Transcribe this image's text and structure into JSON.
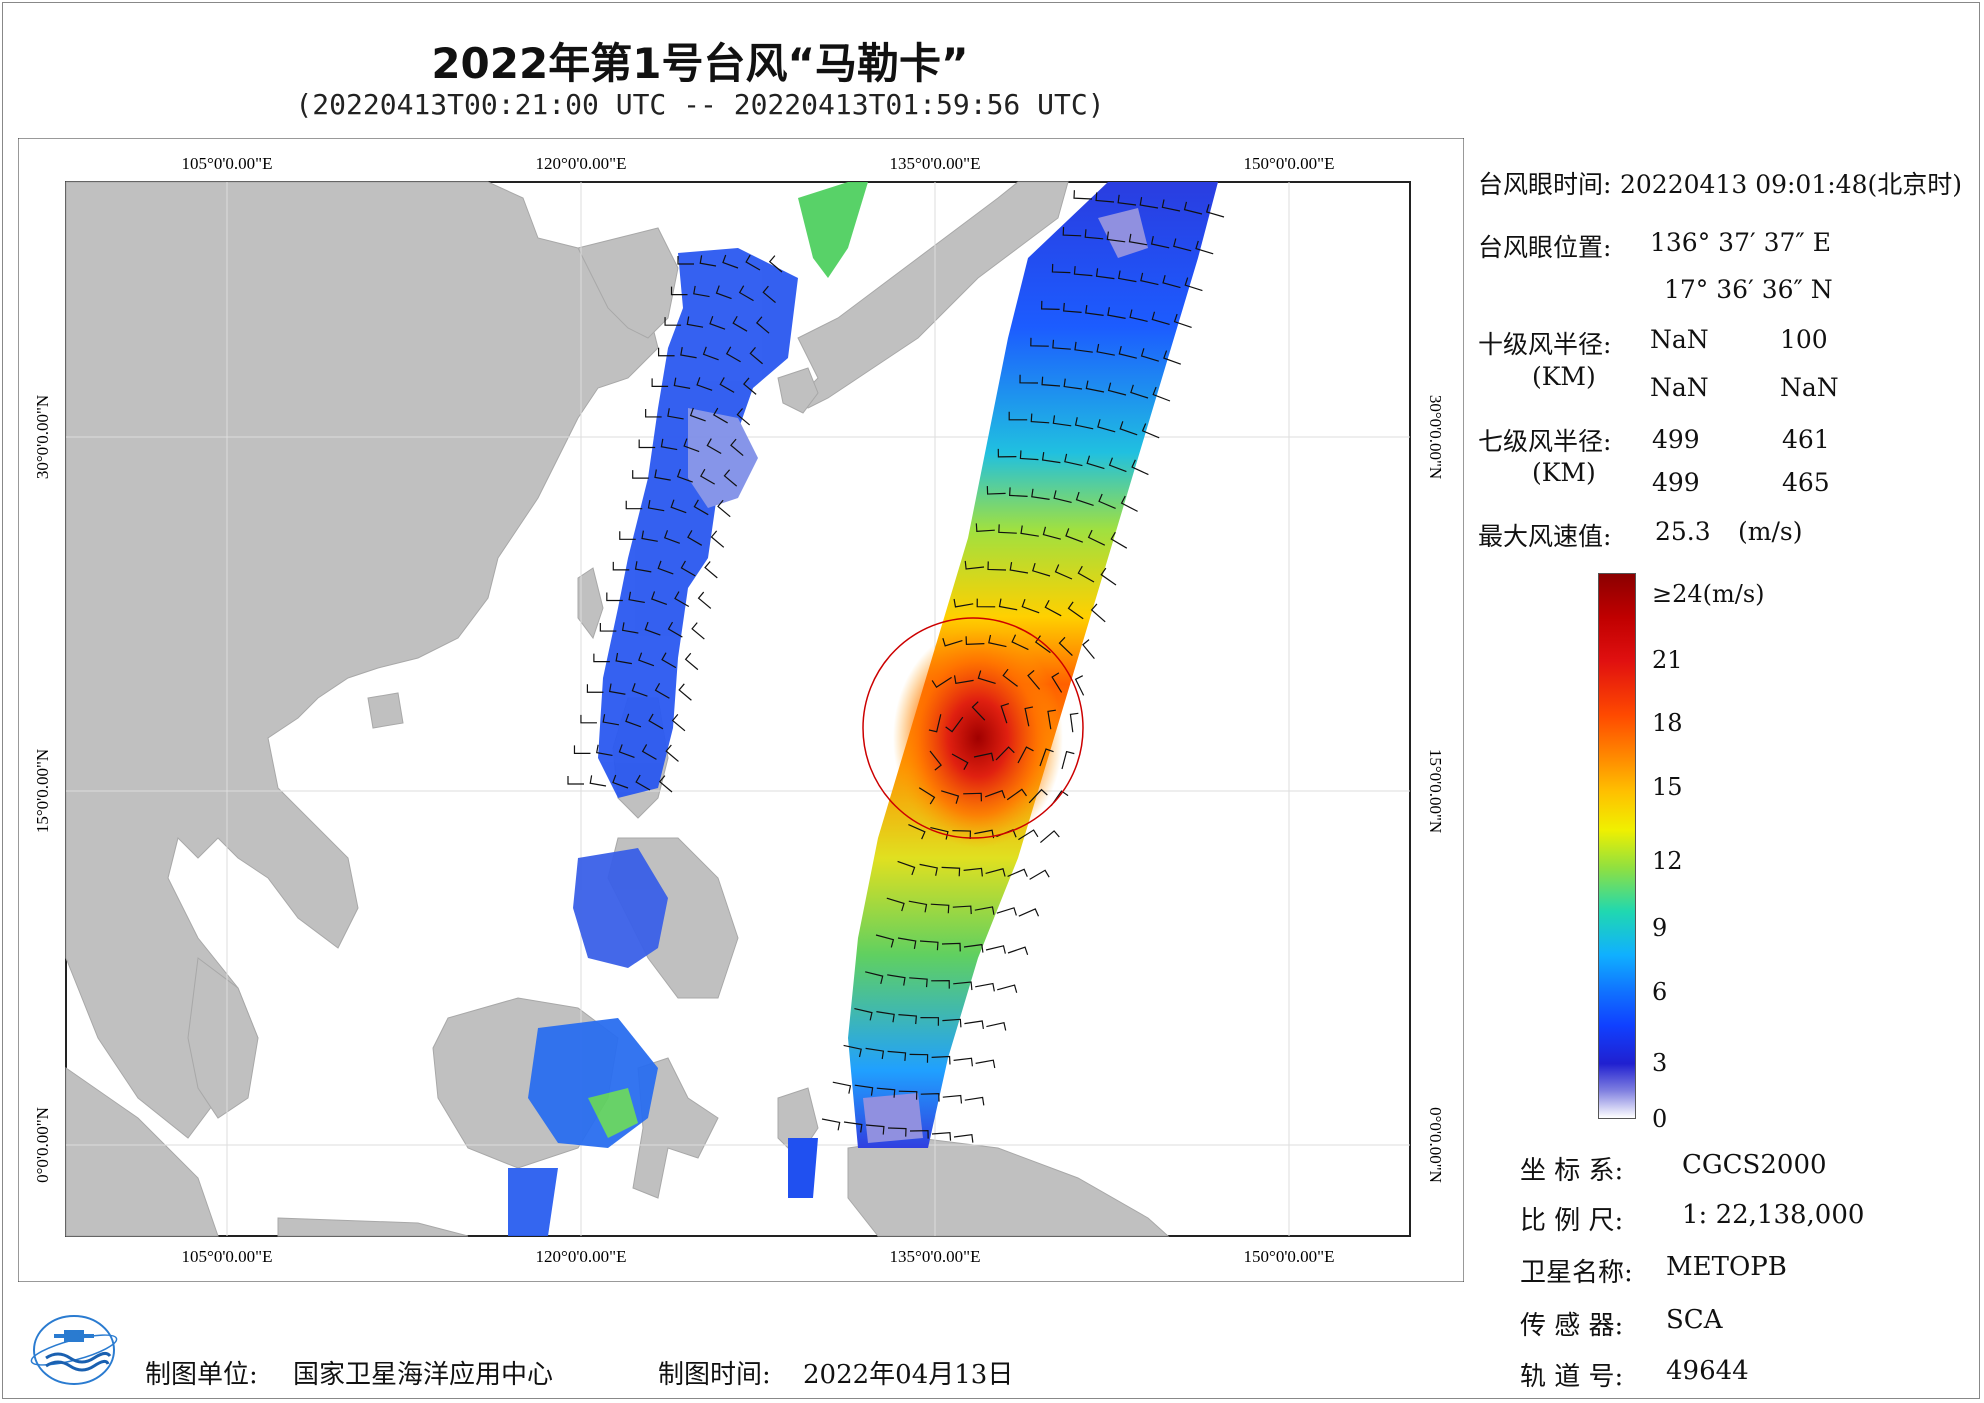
{
  "title": "2022年第1号台风“马勒卡”",
  "subtitle": "(20220413T00:21:00 UTC -- 20220413T01:59:56 UTC)",
  "map": {
    "lon_labels": [
      "105°0'0.00\"E",
      "120°0'0.00\"E",
      "135°0'0.00\"E",
      "150°0'0.00\"E"
    ],
    "lat_labels": [
      "30°0'0.00\"N",
      "15°0'0.00\"N",
      "0°0'0.00\"N"
    ],
    "colors": {
      "land": "#c0c0c0",
      "sea": "#ffffff",
      "circle": "#cc0000"
    }
  },
  "info": {
    "eye_time_label": "台风眼时间:",
    "eye_time_value": "20220413 09:01:48(北京时)",
    "eye_pos_label": "台风眼位置:",
    "eye_lon": "136° 37′ 37″ E",
    "eye_lat": "17° 36′ 36″ N",
    "r10_label": "十级风半径:",
    "r10_unit": "(KM)",
    "r10": [
      [
        "NaN",
        "100"
      ],
      [
        "NaN",
        "NaN"
      ]
    ],
    "r7_label": "七级风半径:",
    "r7_unit": "(KM)",
    "r7": [
      [
        "499",
        "461"
      ],
      [
        "499",
        "465"
      ]
    ],
    "max_wind_label": "最大风速值:",
    "max_wind_value": "25.3",
    "max_wind_unit": "(m/s)"
  },
  "colorbar": {
    "labels": [
      "≥24(m/s)",
      "21",
      "18",
      "15",
      "12",
      "9",
      "6",
      "3",
      "0"
    ],
    "colors": [
      "#8b0000",
      "#e01010",
      "#ff6a00",
      "#ffc000",
      "#f0f000",
      "#80e040",
      "#20d0c0",
      "#10a0ff",
      "#1040ff",
      "#2020d0",
      "#b0a0e0",
      "#ffffff"
    ]
  },
  "meta": {
    "coord_label": "坐 标 系:",
    "coord_value": "CGCS2000",
    "scale_label": "比 例 尺:",
    "scale_value": "1: 22,138,000",
    "sat_label": "卫星名称:",
    "sat_value": "METOPB",
    "sensor_label": "传 感 器:",
    "sensor_value": "SCA",
    "orbit_label": "轨 道 号:",
    "orbit_value": "49644"
  },
  "footer": {
    "unit_label": "制图单位:",
    "unit_value": "国家卫星海洋应用中心",
    "time_label": "制图时间:",
    "time_value": "2022年04月13日"
  }
}
